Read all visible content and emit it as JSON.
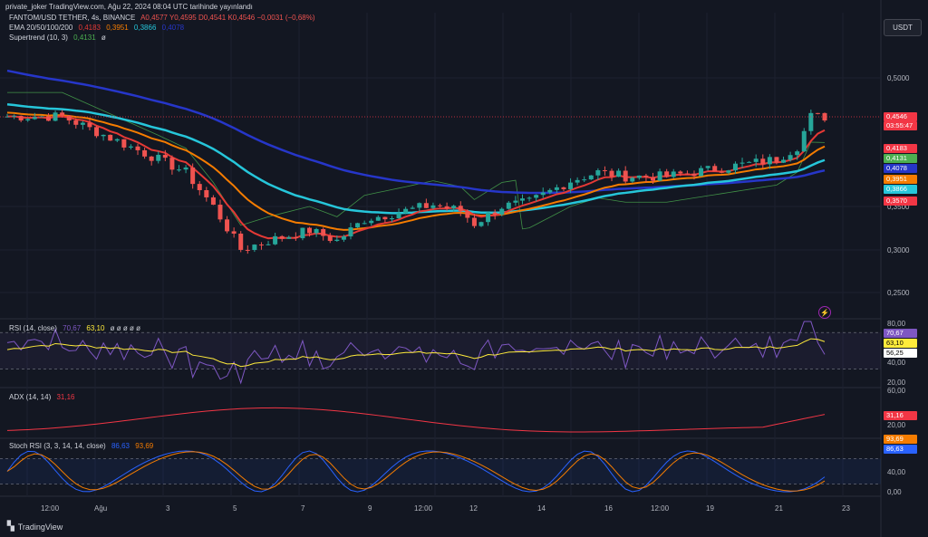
{
  "credit": "private_joker TradingView.com, Ağu 22, 2024 08:04 UTC tarihinde yayınlandı",
  "header": {
    "symbol": "FANTOM/USD TETHER, 4s, BINANCE",
    "ohlc": "A0,4577  Y0,4595  D0,4541  K0,4546  −0,0031 (−0,68%)"
  },
  "ema_legend": {
    "name": "EMA 20/50/100/200",
    "v1": "0,4183",
    "v2": "0,3951",
    "v3": "0,3866",
    "v4": "0,4078"
  },
  "st_legend": {
    "name": "Supertrend (10, 3)",
    "v1": "0,4131",
    "v2": "ø"
  },
  "rsi_legend": {
    "name": "RSI (14, close)",
    "v1": "70,67",
    "v2": "63,10",
    "rest": "ø  ø  ø  ø  ø"
  },
  "adx_legend": {
    "name": "ADX (14, 14)",
    "v1": "31,16"
  },
  "stoch_legend": {
    "name": "Stoch RSI (3, 3, 14, 14, close)",
    "v1": "86,63",
    "v2": "93,69"
  },
  "currency_button": "USDT",
  "price_axis": {
    "ticks": [
      "0,5000",
      "0,3500",
      "0,3000",
      "0,2500"
    ]
  },
  "price_labels": [
    {
      "text": "0,4546",
      "color": "#f23645"
    },
    {
      "text": "03:55:47",
      "color": "#f23645"
    },
    {
      "text": "0,4183",
      "color": "#f23645"
    },
    {
      "text": "0,4131",
      "color": "#4caf50"
    },
    {
      "text": "0,4078",
      "color": "#2636c9"
    },
    {
      "text": "0,3951",
      "color": "#f57c00"
    },
    {
      "text": "0,3866",
      "color": "#26c6da"
    },
    {
      "text": "0,3570",
      "color": "#f23645"
    }
  ],
  "rsi_axis": {
    "ticks": [
      "80,00",
      "40,00",
      "20,00"
    ]
  },
  "rsi_labels": [
    {
      "text": "70,67",
      "color": "#7e57c2"
    },
    {
      "text": "63,10",
      "color": "#ffeb3b"
    },
    {
      "text": "56,25",
      "color": "#ffffff"
    }
  ],
  "adx_axis": {
    "ticks": [
      "60,00",
      "20,00"
    ]
  },
  "adx_labels": [
    {
      "text": "31,16",
      "color": "#f23645"
    }
  ],
  "stoch_axis": {
    "ticks": [
      "40,00",
      "0,00"
    ]
  },
  "stoch_labels": [
    {
      "text": "93,69",
      "color": "#f57c00"
    },
    {
      "text": "86,63",
      "color": "#2962ff"
    }
  ],
  "x_axis": {
    "ticks": [
      "12:00",
      "Ağu",
      "3",
      "5",
      "7",
      "9",
      "12:00",
      "12",
      "14",
      "16",
      "12:00",
      "19",
      "21",
      "23"
    ]
  },
  "brand": "TradingView",
  "colors": {
    "bg": "#131722",
    "up": "#26a69a",
    "down": "#ef5350",
    "ema20": "#e53935",
    "ema50": "#f57c00",
    "ema100": "#26c6da",
    "ema200": "#2636c9"
  }
}
